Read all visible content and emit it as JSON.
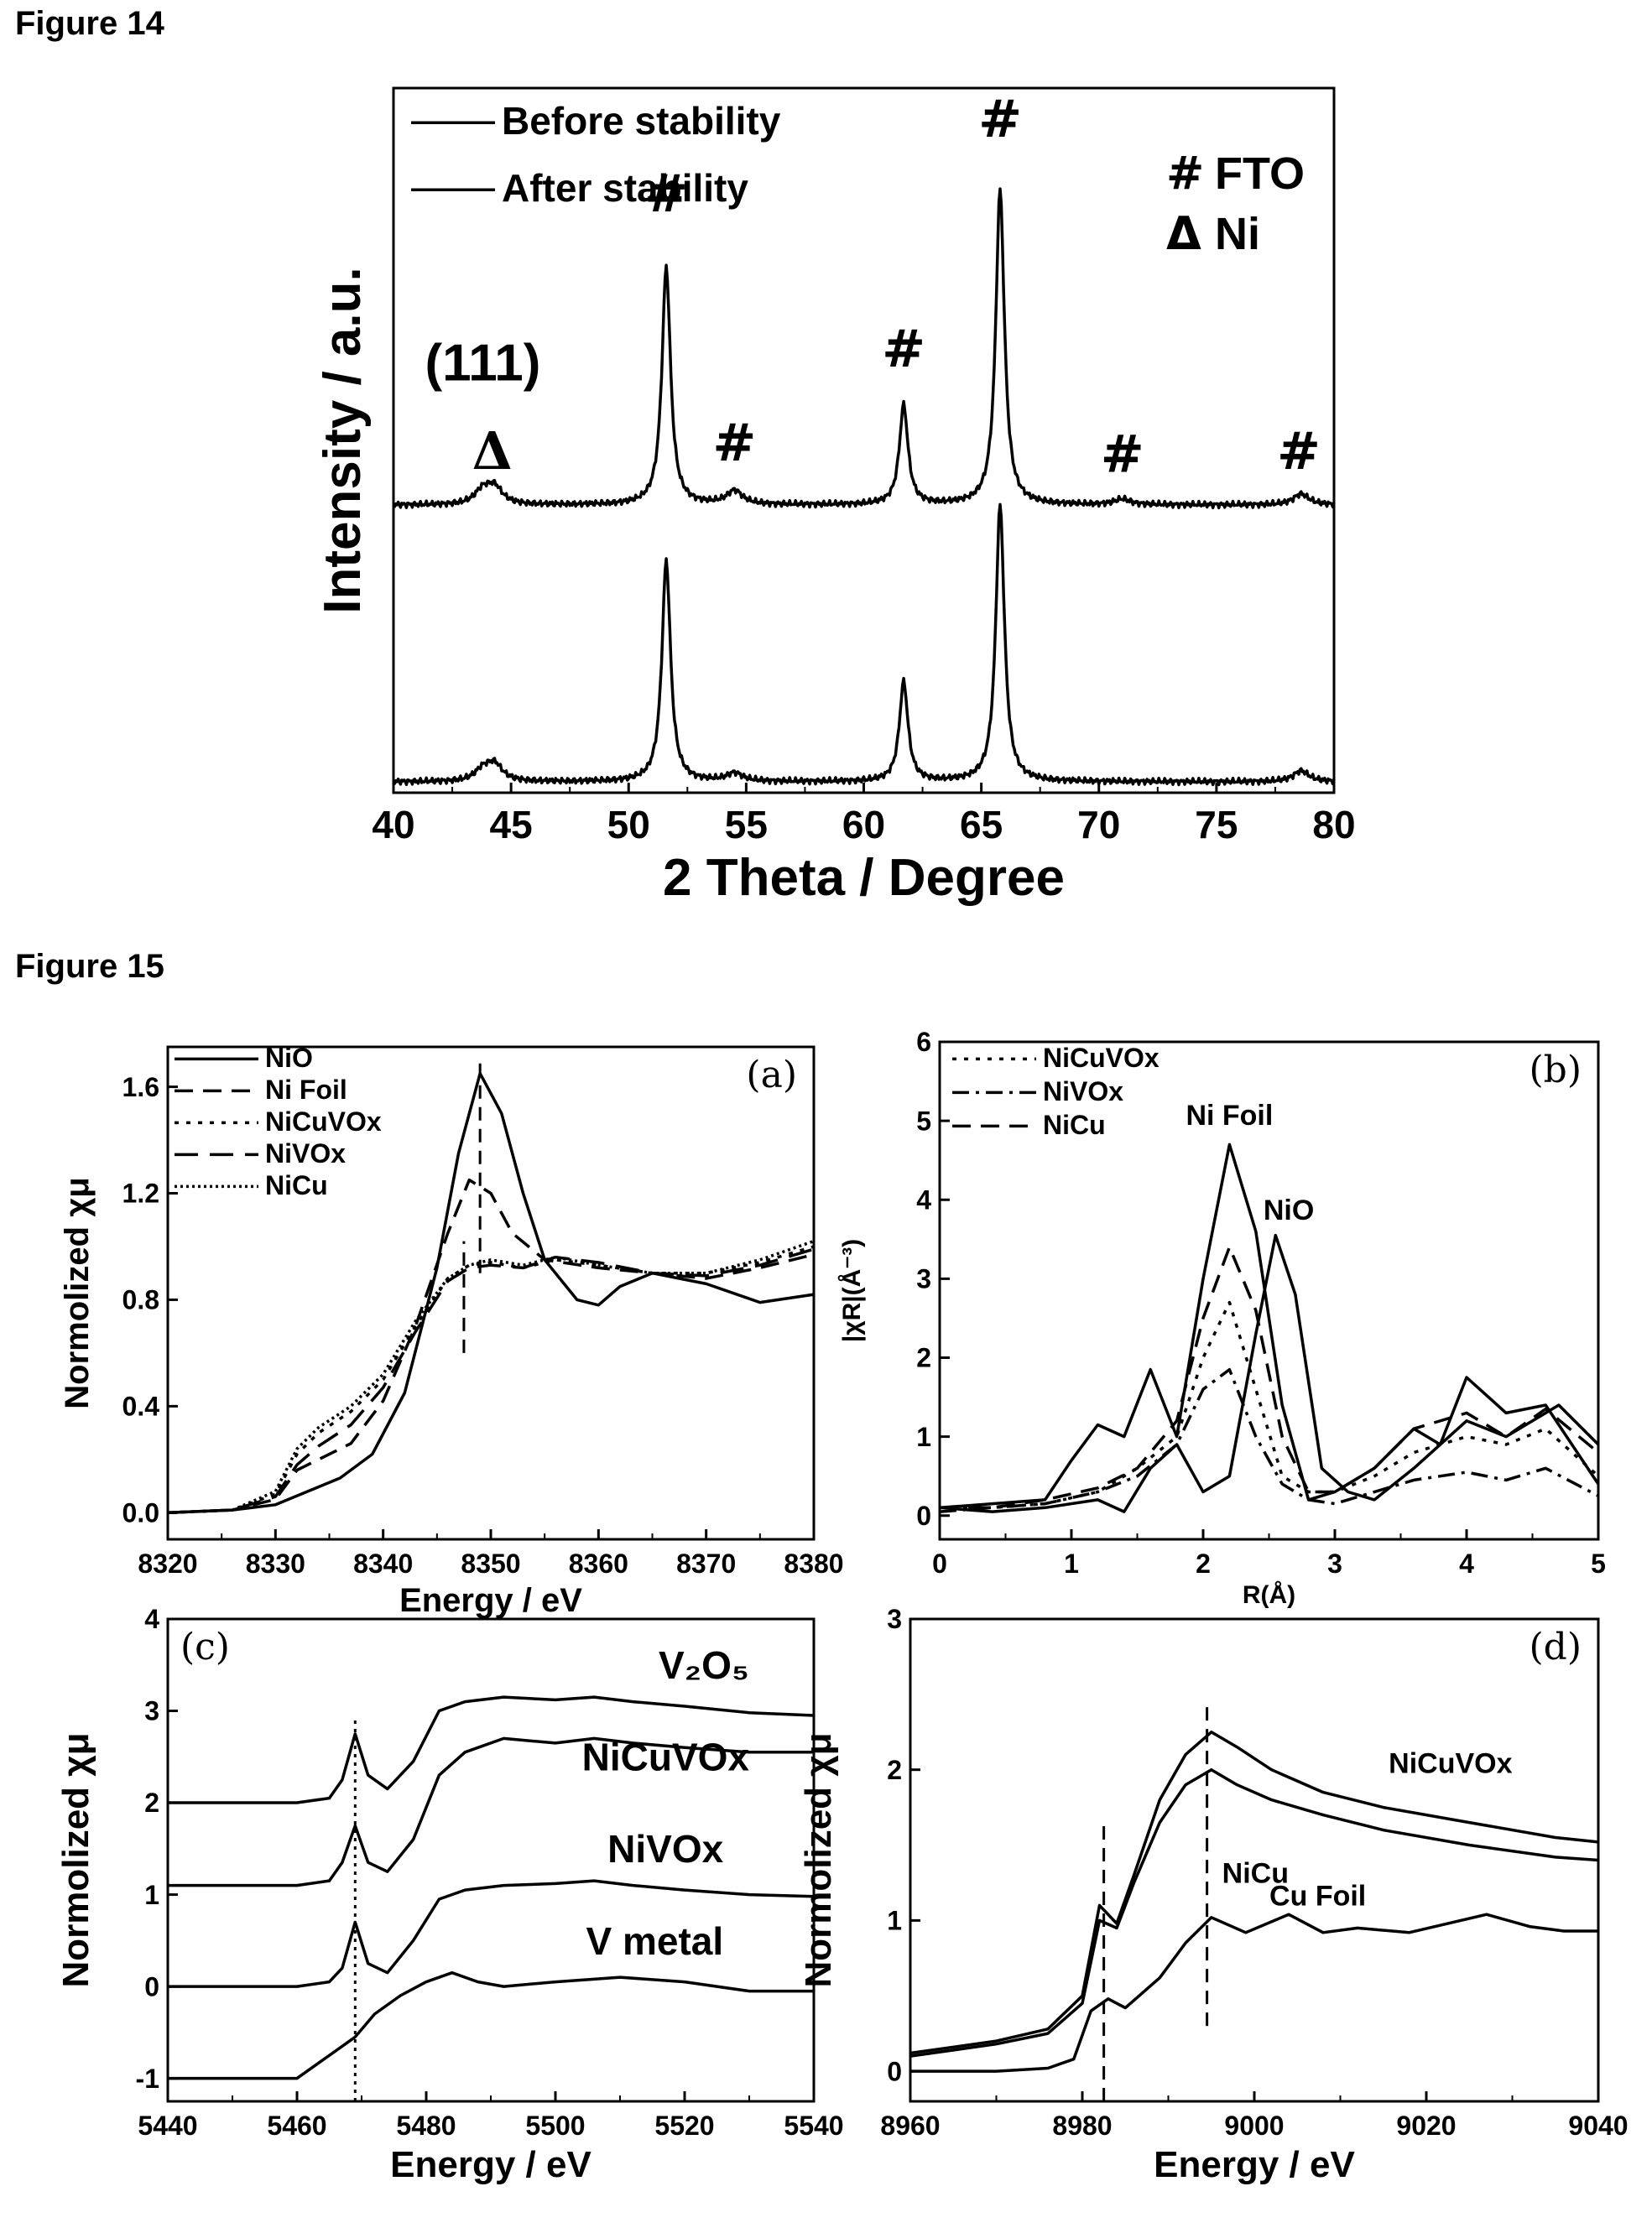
{
  "figures": [
    {
      "label": "Figure 14"
    },
    {
      "label": "Figure 15"
    }
  ],
  "chart_data": [
    {
      "id": "fig14",
      "type": "line",
      "xlabel": "2 Theta / Degree",
      "ylabel": "Intensity / a.u.",
      "xlim": [
        40,
        80
      ],
      "xticks": [
        "40",
        "45",
        "50",
        "55",
        "60",
        "65",
        "70",
        "75",
        "80"
      ],
      "yticks_shown": false,
      "legend_position": "top-left",
      "series": [
        {
          "name": "Before stability",
          "offset": 1.0,
          "peaks": [
            [
              43.8,
              0.05
            ],
            [
              44.3,
              0.06
            ],
            [
              51.6,
              0.86
            ],
            [
              54.5,
              0.05
            ],
            [
              61.7,
              0.36
            ],
            [
              65.8,
              1.14
            ],
            [
              71.0,
              0.02
            ],
            [
              78.6,
              0.04
            ]
          ]
        },
        {
          "name": "After stability",
          "offset": 0.0,
          "peaks": [
            [
              43.8,
              0.04
            ],
            [
              44.3,
              0.06
            ],
            [
              51.6,
              0.8
            ],
            [
              54.5,
              0.03
            ],
            [
              61.7,
              0.36
            ],
            [
              65.8,
              1.0
            ],
            [
              78.6,
              0.04
            ]
          ]
        }
      ],
      "legend_markers": [
        {
          "symbol": "#",
          "label": "FTO"
        },
        {
          "symbol": "Δ",
          "label": "Ni"
        }
      ],
      "annotations": [
        {
          "text": "(111)",
          "x": 43.8,
          "y": 1.45
        },
        {
          "text": "Δ",
          "x": 44.2,
          "y": 1.13
        },
        {
          "text": "#",
          "x": 51.6,
          "y": 2.06
        },
        {
          "text": "#",
          "x": 54.5,
          "y": 1.16
        },
        {
          "text": "#",
          "x": 61.7,
          "y": 1.5
        },
        {
          "text": "#",
          "x": 65.8,
          "y": 2.33
        },
        {
          "text": "#",
          "x": 71.0,
          "y": 1.12
        },
        {
          "text": "#",
          "x": 78.5,
          "y": 1.13
        }
      ]
    },
    {
      "id": "fig15a",
      "type": "line",
      "panel_label": "(a)",
      "xlabel": "Energy / eV",
      "ylabel": "Normolized χμ",
      "xlim": [
        8320,
        8380
      ],
      "ylim": [
        -0.1,
        1.75
      ],
      "xticks": [
        "8320",
        "8330",
        "8340",
        "8350",
        "8360",
        "8370",
        "8380"
      ],
      "yticks": [
        "0.0",
        "0.4",
        "0.8",
        "1.2",
        "1.6"
      ],
      "legend_position": "top-left",
      "series": [
        {
          "name": "NiO",
          "style": "solid",
          "x": [
            8320,
            8326,
            8330,
            8333,
            8336,
            8339,
            8342,
            8345,
            8347,
            8349,
            8351,
            8353,
            8355,
            8358,
            8360,
            8362,
            8365,
            8370,
            8375,
            8380
          ],
          "y": [
            0.0,
            0.01,
            0.03,
            0.08,
            0.13,
            0.22,
            0.45,
            0.92,
            1.35,
            1.65,
            1.5,
            1.2,
            0.95,
            0.8,
            0.78,
            0.85,
            0.9,
            0.86,
            0.79,
            0.82
          ]
        },
        {
          "name": "Ni Foil",
          "style": "dashed",
          "x": [
            8320,
            8326,
            8330,
            8332,
            8334,
            8337,
            8340,
            8343,
            8346,
            8348,
            8350,
            8352,
            8355,
            8360,
            8365,
            8370,
            8375,
            8380
          ],
          "y": [
            0.0,
            0.01,
            0.05,
            0.16,
            0.2,
            0.26,
            0.42,
            0.7,
            1.05,
            1.25,
            1.2,
            1.05,
            0.95,
            0.92,
            0.9,
            0.88,
            0.92,
            0.97
          ]
        },
        {
          "name": "NiCuVOx",
          "style": "dotted",
          "x": [
            8320,
            8326,
            8330,
            8332,
            8334,
            8337,
            8340,
            8343,
            8346,
            8348,
            8350,
            8353,
            8356,
            8360,
            8365,
            8370,
            8375,
            8380
          ],
          "y": [
            0.0,
            0.01,
            0.07,
            0.22,
            0.3,
            0.38,
            0.5,
            0.7,
            0.88,
            0.93,
            0.94,
            0.92,
            0.95,
            0.93,
            0.9,
            0.9,
            0.94,
            1.0
          ]
        },
        {
          "name": "NiVOx",
          "style": "longdash",
          "x": [
            8320,
            8326,
            8330,
            8332,
            8334,
            8337,
            8340,
            8343,
            8346,
            8348,
            8350,
            8353,
            8356,
            8360,
            8365,
            8370,
            8375,
            8380
          ],
          "y": [
            0.0,
            0.01,
            0.06,
            0.18,
            0.25,
            0.33,
            0.47,
            0.68,
            0.87,
            0.92,
            0.93,
            0.92,
            0.96,
            0.94,
            0.9,
            0.89,
            0.93,
            0.99
          ]
        },
        {
          "name": "NiCu",
          "style": "densedot",
          "x": [
            8320,
            8326,
            8330,
            8332,
            8334,
            8337,
            8340,
            8343,
            8346,
            8348,
            8350,
            8353,
            8356,
            8360,
            8365,
            8370,
            8375,
            8380
          ],
          "y": [
            0.0,
            0.01,
            0.08,
            0.24,
            0.32,
            0.4,
            0.52,
            0.72,
            0.88,
            0.93,
            0.95,
            0.93,
            0.96,
            0.93,
            0.9,
            0.9,
            0.95,
            1.02
          ]
        }
      ],
      "reference_lines": [
        {
          "x": 8347.5,
          "y0": 0.6,
          "y1": 1.02
        },
        {
          "x": 8349,
          "y0": 0.9,
          "y1": 1.7
        }
      ]
    },
    {
      "id": "fig15b",
      "type": "line",
      "panel_label": "(b)",
      "xlabel": "R(Å)",
      "ylabel": "|χR|(Å⁻³)",
      "xlim": [
        0,
        5
      ],
      "ylim": [
        -0.3,
        6
      ],
      "xticks": [
        "0",
        "1",
        "2",
        "3",
        "4",
        "5"
      ],
      "yticks": [
        "0",
        "1",
        "2",
        "3",
        "4",
        "5",
        "6"
      ],
      "legend_position": "top-left",
      "series": [
        {
          "name": "NiCuVOx",
          "style": "dotted",
          "x": [
            0,
            0.4,
            0.8,
            1.2,
            1.5,
            1.8,
            2.0,
            2.2,
            2.4,
            2.6,
            2.8,
            3.0,
            3.3,
            3.6,
            4.0,
            4.3,
            4.6,
            5.0
          ],
          "y": [
            0.1,
            0.1,
            0.15,
            0.3,
            0.6,
            1.0,
            2.0,
            2.7,
            1.6,
            0.5,
            0.3,
            0.3,
            0.5,
            0.8,
            1.0,
            0.9,
            1.1,
            0.5
          ]
        },
        {
          "name": "NiVOx",
          "style": "dashdot",
          "x": [
            0,
            0.4,
            0.8,
            1.2,
            1.5,
            1.8,
            2.0,
            2.2,
            2.4,
            2.6,
            2.8,
            3.0,
            3.3,
            3.6,
            4.0,
            4.3,
            4.6,
            5.0
          ],
          "y": [
            0.05,
            0.1,
            0.15,
            0.3,
            0.5,
            0.9,
            1.6,
            1.85,
            1.0,
            0.4,
            0.2,
            0.15,
            0.3,
            0.45,
            0.55,
            0.45,
            0.6,
            0.25
          ]
        },
        {
          "name": "NiCu",
          "style": "dashed",
          "x": [
            0,
            0.4,
            0.8,
            1.2,
            1.5,
            1.8,
            2.0,
            2.2,
            2.4,
            2.6,
            2.8,
            3.0,
            3.3,
            3.6,
            4.0,
            4.3,
            4.6,
            5.0
          ],
          "y": [
            0.1,
            0.1,
            0.2,
            0.35,
            0.6,
            1.2,
            2.5,
            3.4,
            2.6,
            1.0,
            0.3,
            0.3,
            0.6,
            1.1,
            1.3,
            1.0,
            1.35,
            0.8
          ]
        },
        {
          "name": "Ni Foil",
          "style": "solid",
          "x": [
            0,
            0.4,
            0.8,
            1.0,
            1.2,
            1.4,
            1.6,
            1.8,
            2.0,
            2.2,
            2.4,
            2.6,
            2.8,
            3.0,
            3.3,
            3.6,
            3.8,
            4.0,
            4.3,
            4.6,
            5.0
          ],
          "y": [
            0.1,
            0.15,
            0.2,
            0.7,
            1.15,
            1.0,
            1.85,
            1.0,
            3.0,
            4.7,
            3.6,
            1.4,
            0.2,
            0.3,
            0.6,
            1.1,
            0.9,
            1.75,
            1.3,
            1.4,
            0.4
          ]
        },
        {
          "name": "NiO",
          "style": "solid",
          "x": [
            0,
            0.4,
            0.8,
            1.2,
            1.4,
            1.6,
            1.8,
            2.0,
            2.2,
            2.4,
            2.55,
            2.7,
            2.9,
            3.1,
            3.3,
            3.6,
            4.0,
            4.3,
            4.7,
            5.0
          ],
          "y": [
            0.1,
            0.05,
            0.1,
            0.2,
            0.05,
            0.6,
            0.9,
            0.3,
            0.5,
            2.3,
            3.55,
            2.8,
            0.6,
            0.3,
            0.2,
            0.6,
            1.2,
            1.0,
            1.4,
            0.9
          ]
        }
      ],
      "annotations": [
        {
          "text": "Ni Foil",
          "x": 2.2,
          "y": 4.95
        },
        {
          "text": "NiO",
          "x": 2.65,
          "y": 3.75
        }
      ]
    },
    {
      "id": "fig15c",
      "type": "line",
      "panel_label": "(c)",
      "xlabel": "Energy / eV",
      "ylabel": "Normolized χμ",
      "xlim": [
        5440,
        5540
      ],
      "ylim": [
        -1.25,
        4
      ],
      "xticks": [
        "5440",
        "5460",
        "5480",
        "5500",
        "5520",
        "5540"
      ],
      "yticks": [
        "-1",
        "0",
        "1",
        "2",
        "3",
        "4"
      ],
      "series": [
        {
          "name": "V2O5",
          "style": "solid",
          "x": [
            5440,
            5460,
            5465,
            5467,
            5469,
            5471,
            5474,
            5478,
            5482,
            5486,
            5492,
            5500,
            5506,
            5512,
            5520,
            5530,
            5540
          ],
          "y": [
            1.1,
            1.1,
            1.15,
            1.35,
            1.75,
            1.35,
            1.25,
            1.6,
            2.3,
            2.55,
            2.7,
            2.65,
            2.7,
            2.65,
            2.6,
            2.55,
            2.55
          ]
        },
        {
          "name": "NiCuVOx",
          "style": "solid",
          "x": [
            5440,
            5460,
            5465,
            5467,
            5469,
            5471,
            5474,
            5478,
            5482,
            5486,
            5492,
            5500,
            5506,
            5512,
            5520,
            5530,
            5540
          ],
          "y": [
            2.0,
            2.0,
            2.05,
            2.25,
            2.75,
            2.3,
            2.15,
            2.45,
            3.0,
            3.1,
            3.15,
            3.12,
            3.15,
            3.1,
            3.05,
            2.98,
            2.95
          ]
        },
        {
          "name": "NiVOx",
          "style": "solid",
          "x": [
            5440,
            5460,
            5465,
            5467,
            5469,
            5471,
            5474,
            5478,
            5482,
            5486,
            5492,
            5500,
            5506,
            5512,
            5520,
            5530,
            5540
          ],
          "y": [
            0.0,
            0.0,
            0.05,
            0.2,
            0.7,
            0.25,
            0.15,
            0.5,
            0.95,
            1.05,
            1.1,
            1.12,
            1.15,
            1.1,
            1.05,
            1.0,
            0.98
          ]
        },
        {
          "name": "V metal",
          "style": "solid",
          "x": [
            5440,
            5460,
            5464,
            5466,
            5469,
            5472,
            5476,
            5480,
            5484,
            5488,
            5492,
            5500,
            5510,
            5520,
            5530,
            5540
          ],
          "y": [
            -1.0,
            -1.0,
            -0.8,
            -0.7,
            -0.55,
            -0.3,
            -0.1,
            0.05,
            0.15,
            0.05,
            0.0,
            0.05,
            0.1,
            0.05,
            -0.05,
            -0.05
          ]
        }
      ],
      "series_labels": [
        {
          "text": "V₂O₅",
          "x": 5530,
          "y": 3.35
        },
        {
          "text": "NiCuVOx",
          "x": 5530,
          "y": 2.35
        },
        {
          "text": "NiVOx",
          "x": 5526,
          "y": 1.35
        },
        {
          "text": "V metal",
          "x": 5526,
          "y": 0.35
        }
      ],
      "reference_lines": [
        {
          "x": 5469,
          "y0": -1.25,
          "y1": 2.9
        }
      ]
    },
    {
      "id": "fig15d",
      "type": "line",
      "panel_label": "(d)",
      "xlabel": "Energy / eV",
      "ylabel": "Normolized χμ",
      "xlim": [
        8960,
        9040
      ],
      "ylim": [
        -0.2,
        3
      ],
      "xticks": [
        "8960",
        "8980",
        "9000",
        "9020",
        "9040"
      ],
      "yticks": [
        "0",
        "1",
        "2",
        "3"
      ],
      "series": [
        {
          "name": "NiCuVOx",
          "style": "solid",
          "x": [
            8960,
            8970,
            8976,
            8980,
            8982,
            8984,
            8986,
            8989,
            8992,
            8995,
            8998,
            9002,
            9008,
            9015,
            9025,
            9035,
            9040
          ],
          "y": [
            0.12,
            0.2,
            0.28,
            0.5,
            1.1,
            0.98,
            1.3,
            1.8,
            2.1,
            2.25,
            2.15,
            2.0,
            1.85,
            1.75,
            1.65,
            1.55,
            1.52
          ]
        },
        {
          "name": "NiCu",
          "style": "solid",
          "x": [
            8960,
            8970,
            8976,
            8980,
            8982,
            8984,
            8986,
            8989,
            8992,
            8995,
            8998,
            9002,
            9008,
            9015,
            9025,
            9035,
            9040
          ],
          "y": [
            0.1,
            0.18,
            0.25,
            0.45,
            1.0,
            0.95,
            1.25,
            1.65,
            1.9,
            2.0,
            1.9,
            1.8,
            1.7,
            1.6,
            1.5,
            1.42,
            1.4
          ]
        },
        {
          "name": "Cu Foil",
          "style": "solid",
          "x": [
            8960,
            8970,
            8976,
            8979,
            8981,
            8983,
            8985,
            8989,
            8992,
            8995,
            8999,
            9004,
            9008,
            9012,
            9018,
            9027,
            9032,
            9036,
            9040
          ],
          "y": [
            0.0,
            0.0,
            0.02,
            0.08,
            0.4,
            0.48,
            0.42,
            0.62,
            0.85,
            1.02,
            0.92,
            1.04,
            0.92,
            0.95,
            0.92,
            1.04,
            0.96,
            0.93,
            0.93
          ]
        }
      ],
      "series_labels": [
        {
          "text": "NiCuVOx",
          "x": 9030,
          "y": 1.98
        },
        {
          "text": "NiCu",
          "x": 9004,
          "y": 1.25
        },
        {
          "text": "Cu Foil",
          "x": 9013,
          "y": 1.1
        }
      ],
      "reference_lines": [
        {
          "x": 8982.5,
          "y0": -0.2,
          "y1": 1.65
        },
        {
          "x": 8994.5,
          "y0": 0.3,
          "y1": 2.45
        }
      ]
    }
  ]
}
